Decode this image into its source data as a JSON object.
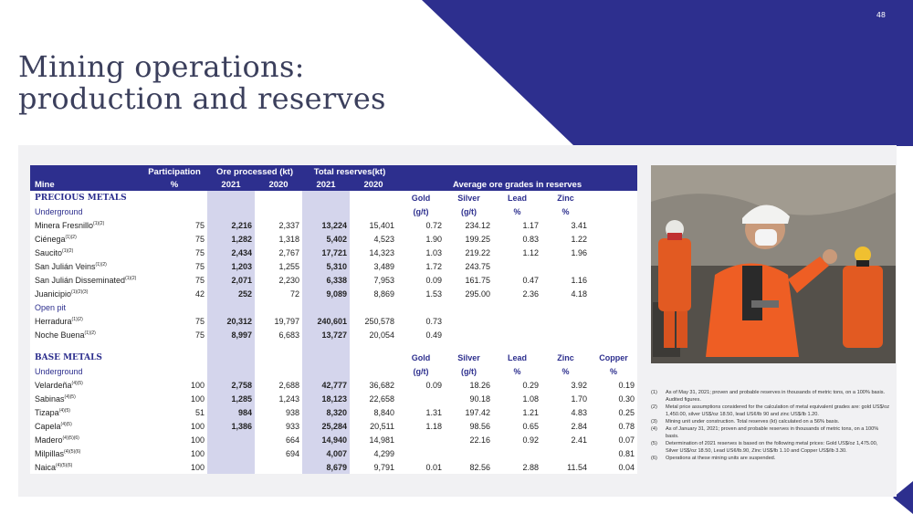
{
  "page_number": "48",
  "title_line1": "Mining operations:",
  "title_line2": "production and reserves",
  "colors": {
    "brand": "#2d2f8e",
    "highlight": "#d4d5ec",
    "panel": "#f1f1f3"
  },
  "header": {
    "participation": "Participation",
    "ore_processed": "Ore processed (kt)",
    "total_reserves": "Total reserves(kt)",
    "mine": "Mine",
    "percent": "%",
    "y2021": "2021",
    "y2020": "2020",
    "grades": "Average ore grades in reserves"
  },
  "precious": {
    "title": "PRECIOUS METALS",
    "metals": [
      "Gold",
      "Silver",
      "Lead",
      "Zinc"
    ],
    "underground": "Underground",
    "units": [
      "(g/t)",
      "(g/t)",
      "%",
      "%"
    ],
    "open_pit": "Open pit"
  },
  "base": {
    "title": "BASE METALS",
    "metals": [
      "Gold",
      "Silver",
      "Lead",
      "Zinc",
      "Copper"
    ],
    "underground": "Underground",
    "units": [
      "(g/t)",
      "(g/t)",
      "%",
      "%",
      "%"
    ]
  },
  "rows": [
    {
      "mine": "Minera Fresnillo",
      "sup": "(1)(2)",
      "part": "75",
      "o21": "2,216",
      "o20": "2,337",
      "r21": "13,224",
      "r20": "15,401",
      "gold": "0.72",
      "silver": "234.12",
      "lead": "1.17",
      "zinc": "3.41",
      "copper": ""
    },
    {
      "mine": "Ciénega",
      "sup": "(1)(2)",
      "part": "75",
      "o21": "1,282",
      "o20": "1,318",
      "r21": "5,402",
      "r20": "4,523",
      "gold": "1.90",
      "silver": "199.25",
      "lead": "0.83",
      "zinc": "1.22",
      "copper": ""
    },
    {
      "mine": "Saucito",
      "sup": "(1)(2)",
      "part": "75",
      "o21": "2,434",
      "o20": "2,767",
      "r21": "17,721",
      "r20": "14,323",
      "gold": "1.03",
      "silver": "219.22",
      "lead": "1.12",
      "zinc": "1.96",
      "copper": ""
    },
    {
      "mine": "San Julián Veins",
      "sup": "(1)(2)",
      "part": "75",
      "o21": "1,203",
      "o20": "1,255",
      "r21": "5,310",
      "r20": "3,489",
      "gold": "1.72",
      "silver": "243.75",
      "lead": "",
      "zinc": "",
      "copper": ""
    },
    {
      "mine": "San Julián Disseminated",
      "sup": "(1)(2)",
      "part": "75",
      "o21": "2,071",
      "o20": "2,230",
      "r21": "6,338",
      "r20": "7,953",
      "gold": "0.09",
      "silver": "161.75",
      "lead": "0.47",
      "zinc": "1.16",
      "copper": ""
    },
    {
      "mine": "Juanicipio",
      "sup": "(1)(2)(3)",
      "part": "42",
      "o21": "252",
      "o20": "72",
      "r21": "9,089",
      "r20": "8,869",
      "gold": "1.53",
      "silver": "295.00",
      "lead": "2.36",
      "zinc": "4.18",
      "copper": ""
    },
    {
      "mine": "Herradura",
      "sup": "(1)(2)",
      "part": "75",
      "o21": "20,312",
      "o20": "19,797",
      "r21": "240,601",
      "r20": "250,578",
      "gold": "0.73",
      "silver": "",
      "lead": "",
      "zinc": "",
      "copper": ""
    },
    {
      "mine": "Noche Buena",
      "sup": "(1)(2)",
      "part": "75",
      "o21": "8,997",
      "o20": "6,683",
      "r21": "13,727",
      "r20": "20,054",
      "gold": "0.49",
      "silver": "",
      "lead": "",
      "zinc": "",
      "copper": ""
    },
    {
      "mine": "Velardeña",
      "sup": "(4)(5)",
      "part": "100",
      "o21": "2,758",
      "o20": "2,688",
      "r21": "42,777",
      "r20": "36,682",
      "gold": "0.09",
      "silver": "18.26",
      "lead": "0.29",
      "zinc": "3.92",
      "copper": "0.19"
    },
    {
      "mine": "Sabinas",
      "sup": "(4)(5)",
      "part": "100",
      "o21": "1,285",
      "o20": "1,243",
      "r21": "18,123",
      "r20": "22,658",
      "gold": "",
      "silver": "90.18",
      "lead": "1.08",
      "zinc": "1.70",
      "copper": "0.30"
    },
    {
      "mine": "Tizapa",
      "sup": "(4)(5)",
      "part": "51",
      "o21": "984",
      "o20": "938",
      "r21": "8,320",
      "r20": "8,840",
      "gold": "1.31",
      "silver": "197.42",
      "lead": "1.21",
      "zinc": "4.83",
      "copper": "0.25"
    },
    {
      "mine": "Capela",
      "sup": "(4)(5)",
      "part": "100",
      "o21": "1,386",
      "o20": "933",
      "r21": "25,284",
      "r20": "20,511",
      "gold": "1.18",
      "silver": "98.56",
      "lead": "0.65",
      "zinc": "2.84",
      "copper": "0.78"
    },
    {
      "mine": "Madero",
      "sup": "(4)(5)(6)",
      "part": "100",
      "o21": "",
      "o20": "664",
      "r21": "14,940",
      "r20": "14,981",
      "gold": "",
      "silver": "22.16",
      "lead": "0.92",
      "zinc": "2.41",
      "copper": "0.07"
    },
    {
      "mine": "Milpillas",
      "sup": "(4)(5)(6)",
      "part": "100",
      "o21": "",
      "o20": "694",
      "r21": "4,007",
      "r20": "4,299",
      "gold": "",
      "silver": "",
      "lead": "",
      "zinc": "",
      "copper": "0.81"
    },
    {
      "mine": "Naica",
      "sup": "(4)(5)(6)",
      "part": "100",
      "o21": "",
      "o20": "",
      "r21": "8,679",
      "r20": "9,791",
      "gold": "0.01",
      "silver": "82.56",
      "lead": "2.88",
      "zinc": "11.54",
      "copper": "0.04"
    }
  ],
  "notes": [
    {
      "n": "(1)",
      "text": "As of May 31, 2021; proven and probable reserves in thousands of metric tons, on a 100% basis. Audited figures."
    },
    {
      "n": "(2)",
      "text": "Metal price assumptions considered for the calculation of metal equivalent grades are: gold US$/oz 1,450.00, silver US$/oz 18.50, lead US¢/lb 90 and zinc US$/lb 1.20."
    },
    {
      "n": "(3)",
      "text": "Mining unit under construction. Total reserves (kt) calculated on a 56% basis."
    },
    {
      "n": "(4)",
      "text": "As of January 31, 2021; proven and probable reserves in thousands of metric tons, on a 100% basis."
    },
    {
      "n": "(5)",
      "text": "Determination of 2021 reserves is based on the following metal prices: Gold US$/oz 1,475.00, Silver US$/oz 18.50, Lead US¢/lb.90, Zinc US$/lb 1.10 and Copper US$/lb 3.30."
    },
    {
      "n": "(6)",
      "text": "Operations at these mining units are suspended."
    }
  ]
}
